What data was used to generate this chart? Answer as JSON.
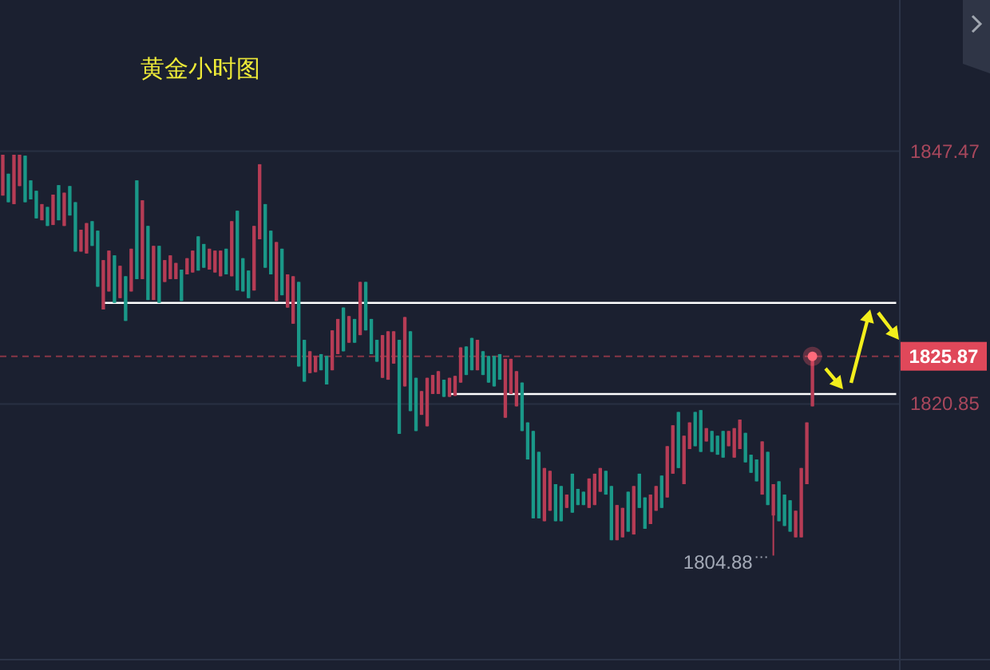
{
  "chart_data": {
    "type": "candlestick",
    "title": "黄金小时图",
    "categories": [
      null,
      null,
      null,
      null,
      null,
      null,
      null,
      null,
      null,
      null,
      null,
      null,
      null,
      null,
      null,
      null,
      null,
      null,
      null,
      null,
      null,
      null,
      null,
      null,
      null,
      null,
      null,
      null,
      null,
      null,
      null,
      null,
      null,
      null,
      null,
      null,
      null,
      null,
      null,
      null,
      null,
      null,
      null,
      null,
      null,
      null,
      null,
      null,
      null,
      null,
      null,
      null,
      null,
      null,
      null,
      null,
      null,
      null,
      null,
      null,
      null,
      null,
      null,
      null,
      null,
      null,
      null,
      null,
      null,
      null,
      null,
      null,
      null,
      null,
      null,
      null,
      null,
      null,
      null,
      null,
      null,
      null,
      null,
      null,
      null,
      null,
      null,
      null,
      null,
      null,
      null,
      null,
      null,
      null,
      null,
      null,
      null,
      null,
      null,
      null,
      null,
      null,
      null,
      null,
      null,
      null,
      null,
      null,
      null,
      null,
      null,
      null,
      null,
      null,
      null,
      null,
      null,
      null,
      null,
      null,
      null,
      null,
      null,
      null,
      null,
      null,
      null,
      null,
      null,
      null,
      null,
      null,
      null,
      null,
      null,
      null,
      null,
      null,
      null,
      null,
      null,
      null,
      null,
      null,
      null,
      null,
      null,
      null,
      null,
      null,
      null,
      null,
      null,
      null,
      null,
      null,
      null,
      null,
      null,
      null,
      null
    ],
    "ohlc": [
      [
        1842.8,
        1847.1,
        1842.8,
        1847.1
      ],
      [
        1845.1,
        1845.1,
        1842.1,
        1842.1
      ],
      [
        1841.9,
        1847.1,
        1841.9,
        1847.1
      ],
      [
        1843.8,
        1847.1,
        1843.8,
        1847.1
      ],
      [
        1847.0,
        1847.0,
        1842.1,
        1842.1
      ],
      [
        1844.4,
        1844.4,
        1842.4,
        1842.4
      ],
      [
        1843.3,
        1843.3,
        1840.4,
        1840.4
      ],
      [
        1840.2,
        1841.9,
        1840.2,
        1841.9
      ],
      [
        1841.6,
        1841.6,
        1839.6,
        1839.6
      ],
      [
        1839.7,
        1842.9,
        1839.7,
        1842.9
      ],
      [
        1843.9,
        1843.9,
        1840.2,
        1840.2
      ],
      [
        1839.6,
        1843.1,
        1839.6,
        1843.1
      ],
      [
        1843.8,
        1843.8,
        1840.7,
        1840.7
      ],
      [
        1842.1,
        1842.1,
        1836.9,
        1836.9
      ],
      [
        1836.9,
        1839.2,
        1836.9,
        1839.2
      ],
      [
        1836.7,
        1839.9,
        1836.7,
        1839.9
      ],
      [
        1840.1,
        1840.1,
        1837.5,
        1837.5
      ],
      [
        1839.1,
        1839.1,
        1833.2,
        1833.2
      ],
      [
        1830.8,
        1836.0,
        1830.8,
        1836.0
      ],
      [
        1832.7,
        1837.0,
        1832.7,
        1837.0
      ],
      [
        1836.5,
        1836.5,
        1831.5,
        1831.5
      ],
      [
        1832.0,
        1835.4,
        1832.0,
        1835.4
      ],
      [
        1834.3,
        1834.3,
        1829.6,
        1829.6
      ],
      [
        1832.7,
        1837.2,
        1832.7,
        1837.2
      ],
      [
        1844.4,
        1844.4,
        1834.0,
        1834.0
      ],
      [
        1834.0,
        1842.3,
        1834.0,
        1842.3
      ],
      [
        1839.6,
        1839.6,
        1831.8,
        1831.8
      ],
      [
        1831.8,
        1837.5,
        1831.8,
        1837.5
      ],
      [
        1837.5,
        1837.5,
        1831.5,
        1831.5
      ],
      [
        1833.7,
        1836.0,
        1833.7,
        1836.0
      ],
      [
        1834.0,
        1836.5,
        1834.0,
        1836.5
      ],
      [
        1834.0,
        1835.7,
        1834.0,
        1835.7
      ],
      [
        1835.0,
        1835.0,
        1831.7,
        1831.7
      ],
      [
        1834.5,
        1836.2,
        1834.5,
        1836.2
      ],
      [
        1834.7,
        1837.0,
        1834.7,
        1837.0
      ],
      [
        1838.5,
        1838.5,
        1834.9,
        1834.9
      ],
      [
        1837.7,
        1837.7,
        1835.2,
        1835.2
      ],
      [
        1835.0,
        1837.2,
        1835.0,
        1837.2
      ],
      [
        1834.7,
        1837.0,
        1834.7,
        1837.0
      ],
      [
        1834.3,
        1837.0,
        1834.3,
        1837.0
      ],
      [
        1837.2,
        1837.2,
        1834.5,
        1834.5
      ],
      [
        1834.3,
        1840.1,
        1834.3,
        1840.1
      ],
      [
        1841.2,
        1841.2,
        1832.8,
        1832.8
      ],
      [
        1836.2,
        1836.2,
        1832.7,
        1832.7
      ],
      [
        1834.9,
        1834.9,
        1832.0,
        1832.0
      ],
      [
        1832.8,
        1839.6,
        1832.8,
        1839.6
      ],
      [
        1838.2,
        1846.1,
        1838.2,
        1846.1
      ],
      [
        1841.9,
        1841.9,
        1835.2,
        1835.2
      ],
      [
        1839.1,
        1839.1,
        1834.5,
        1834.5
      ],
      [
        1831.7,
        1837.9,
        1831.7,
        1837.9
      ],
      [
        1837.2,
        1837.2,
        1832.3,
        1832.3
      ],
      [
        1831.0,
        1834.5,
        1831.0,
        1834.5
      ],
      [
        1829.3,
        1834.3,
        1829.3,
        1834.3
      ],
      [
        1833.7,
        1833.7,
        1824.8,
        1824.8
      ],
      [
        1827.6,
        1827.6,
        1823.2,
        1823.2
      ],
      [
        1824.1,
        1826.4,
        1824.1,
        1826.4
      ],
      [
        1824.2,
        1825.9,
        1824.2,
        1825.9
      ],
      [
        1826.1,
        1826.1,
        1824.4,
        1824.4
      ],
      [
        1825.9,
        1825.9,
        1822.9,
        1822.9
      ],
      [
        1824.4,
        1828.6,
        1824.4,
        1828.6
      ],
      [
        1826.1,
        1829.8,
        1826.1,
        1829.8
      ],
      [
        1831.0,
        1831.0,
        1826.4,
        1826.4
      ],
      [
        1827.3,
        1830.1,
        1827.3,
        1830.1
      ],
      [
        1829.8,
        1829.8,
        1827.3,
        1827.3
      ],
      [
        1828.1,
        1833.7,
        1828.1,
        1833.7
      ],
      [
        1833.7,
        1833.7,
        1828.6,
        1828.6
      ],
      [
        1829.8,
        1829.8,
        1826.1,
        1826.1
      ],
      [
        1827.6,
        1827.6,
        1825.3,
        1825.3
      ],
      [
        1823.6,
        1828.1,
        1823.6,
        1828.1
      ],
      [
        1823.4,
        1828.5,
        1823.4,
        1828.5
      ],
      [
        1825.1,
        1828.5,
        1825.1,
        1828.5
      ],
      [
        1827.6,
        1827.6,
        1817.7,
        1817.7
      ],
      [
        1822.7,
        1830.0,
        1822.7,
        1830.0
      ],
      [
        1828.5,
        1828.5,
        1820.1,
        1820.1
      ],
      [
        1823.6,
        1823.6,
        1818.0,
        1818.0
      ],
      [
        1819.7,
        1822.2,
        1819.7,
        1822.2
      ],
      [
        1818.5,
        1823.6,
        1818.5,
        1823.6
      ],
      [
        1821.9,
        1823.9,
        1821.9,
        1823.9
      ],
      [
        1821.9,
        1824.3,
        1821.9,
        1824.3
      ],
      [
        1823.4,
        1823.4,
        1821.6,
        1821.6
      ],
      [
        1821.6,
        1823.6,
        1821.6,
        1823.6
      ],
      [
        1821.7,
        1823.8,
        1821.7,
        1823.8
      ],
      [
        1823.1,
        1826.8,
        1823.1,
        1826.8
      ],
      [
        1826.9,
        1826.9,
        1823.9,
        1823.9
      ],
      [
        1827.8,
        1827.8,
        1824.4,
        1824.4
      ],
      [
        1824.4,
        1827.6,
        1824.4,
        1827.6
      ],
      [
        1826.4,
        1826.4,
        1823.9,
        1823.9
      ],
      [
        1825.9,
        1825.9,
        1823.1,
        1823.1
      ],
      [
        1825.9,
        1825.9,
        1822.7,
        1822.7
      ],
      [
        1826.1,
        1826.1,
        1823.4,
        1823.4
      ],
      [
        1819.4,
        1825.6,
        1819.4,
        1825.6
      ],
      [
        1821.9,
        1825.6,
        1821.9,
        1825.6
      ],
      [
        1820.6,
        1824.3,
        1820.6,
        1824.3
      ],
      [
        1823.1,
        1823.1,
        1818.0,
        1818.0
      ],
      [
        1818.9,
        1818.9,
        1815.0,
        1815.0
      ],
      [
        1818.0,
        1818.0,
        1808.8,
        1808.8
      ],
      [
        1815.8,
        1815.8,
        1808.8,
        1808.8
      ],
      [
        1808.5,
        1814.1,
        1808.5,
        1814.1
      ],
      [
        1809.6,
        1813.8,
        1809.6,
        1813.8
      ],
      [
        1812.4,
        1812.4,
        1808.5,
        1808.5
      ],
      [
        1812.2,
        1812.2,
        1808.5,
        1808.5
      ],
      [
        1809.9,
        1811.3,
        1809.9,
        1811.3
      ],
      [
        1813.5,
        1813.5,
        1809.4,
        1809.4
      ],
      [
        1811.9,
        1811.9,
        1810.2,
        1810.2
      ],
      [
        1811.6,
        1811.6,
        1810.2,
        1810.2
      ],
      [
        1809.9,
        1813.0,
        1809.9,
        1813.0
      ],
      [
        1810.2,
        1813.5,
        1810.2,
        1813.5
      ],
      [
        1811.6,
        1814.1,
        1811.6,
        1814.1
      ],
      [
        1813.8,
        1813.8,
        1811.3,
        1811.3
      ],
      [
        1812.2,
        1812.2,
        1806.5,
        1806.5
      ],
      [
        1806.5,
        1810.2,
        1806.5,
        1810.2
      ],
      [
        1806.8,
        1809.9,
        1806.8,
        1809.9
      ],
      [
        1811.6,
        1811.6,
        1807.4,
        1807.4
      ],
      [
        1807.1,
        1812.2,
        1807.1,
        1812.2
      ],
      [
        1813.5,
        1813.5,
        1809.9,
        1809.9
      ],
      [
        1811.0,
        1811.0,
        1807.7,
        1807.7
      ],
      [
        1808.2,
        1811.3,
        1808.2,
        1811.3
      ],
      [
        1809.6,
        1812.2,
        1809.6,
        1812.2
      ],
      [
        1813.3,
        1813.3,
        1809.9,
        1809.9
      ],
      [
        1811.0,
        1816.4,
        1811.0,
        1816.4
      ],
      [
        1813.5,
        1818.6,
        1813.5,
        1818.6
      ],
      [
        1820.0,
        1820.0,
        1814.1,
        1814.1
      ],
      [
        1812.4,
        1817.5,
        1812.4,
        1817.5
      ],
      [
        1816.1,
        1818.9,
        1816.1,
        1818.9
      ],
      [
        1820.0,
        1820.0,
        1816.4,
        1816.4
      ],
      [
        1820.2,
        1820.2,
        1815.8,
        1815.8
      ],
      [
        1816.9,
        1818.3,
        1816.9,
        1818.3
      ],
      [
        1818.0,
        1818.0,
        1815.8,
        1815.8
      ],
      [
        1817.5,
        1817.5,
        1815.5,
        1815.5
      ],
      [
        1818.0,
        1818.0,
        1815.2,
        1815.2
      ],
      [
        1816.4,
        1818.0,
        1816.4,
        1818.0
      ],
      [
        1815.2,
        1818.3,
        1815.2,
        1818.3
      ],
      [
        1816.1,
        1819.2,
        1816.1,
        1819.2
      ],
      [
        1817.8,
        1817.8,
        1814.7,
        1814.7
      ],
      [
        1815.5,
        1815.5,
        1813.6,
        1813.6
      ],
      [
        1815.0,
        1815.0,
        1812.7,
        1812.7
      ],
      [
        1811.3,
        1816.9,
        1811.3,
        1816.9
      ],
      [
        1815.8,
        1815.8,
        1810.2,
        1810.2
      ],
      [
        1809.1,
        1812.4,
        1804.88,
        1812.4
      ],
      [
        1812.7,
        1812.7,
        1808.5,
        1808.5
      ],
      [
        1811.3,
        1811.3,
        1808.0,
        1808.0
      ],
      [
        1810.7,
        1810.7,
        1807.4,
        1807.4
      ],
      [
        1806.8,
        1809.6,
        1806.8,
        1809.6
      ],
      [
        1806.8,
        1814.1,
        1806.8,
        1814.1
      ],
      [
        1812.4,
        1818.9,
        1812.4,
        1818.9
      ],
      [
        1820.6,
        1825.87,
        1820.6,
        1825.87
      ],
      null,
      null,
      null,
      null,
      null,
      null,
      null,
      null,
      null,
      null,
      null,
      null,
      null,
      null,
      null
    ],
    "colors": [
      "#b63c55",
      "#1a9888",
      "#b63c55",
      "#b63c55",
      "#1a9888",
      "#1a9888",
      "#1a9888",
      "#b63c55",
      "#1a9888",
      "#b63c55",
      "#1a9888",
      "#b63c55",
      "#1a9888",
      "#1a9888",
      "#b63c55",
      "#b63c55",
      "#1a9888",
      "#1a9888",
      "#b63c55",
      "#b63c55",
      "#1a9888",
      "#b63c55",
      "#1a9888",
      "#b63c55",
      "#1a9888",
      "#b63c55",
      "#1a9888",
      "#b63c55",
      "#1a9888",
      "#b63c55",
      "#b63c55",
      "#b63c55",
      "#1a9888",
      "#b63c55",
      "#b63c55",
      "#1a9888",
      "#1a9888",
      "#b63c55",
      "#b63c55",
      "#b63c55",
      "#1a9888",
      "#b63c55",
      "#1a9888",
      "#1a9888",
      "#1a9888",
      "#b63c55",
      "#b63c55",
      "#1a9888",
      "#1a9888",
      "#b63c55",
      "#1a9888",
      "#b63c55",
      "#b63c55",
      "#1a9888",
      "#1a9888",
      "#b63c55",
      "#b63c55",
      "#1a9888",
      "#1a9888",
      "#b63c55",
      "#b63c55",
      "#1a9888",
      "#b63c55",
      "#1a9888",
      "#b63c55",
      "#1a9888",
      "#1a9888",
      "#1a9888",
      "#b63c55",
      "#b63c55",
      "#b63c55",
      "#1a9888",
      "#b63c55",
      "#1a9888",
      "#1a9888",
      "#b63c55",
      "#b63c55",
      "#b63c55",
      "#b63c55",
      "#1a9888",
      "#b63c55",
      "#b63c55",
      "#b63c55",
      "#1a9888",
      "#1a9888",
      "#b63c55",
      "#1a9888",
      "#1a9888",
      "#1a9888",
      "#1a9888",
      "#b63c55",
      "#b63c55",
      "#b63c55",
      "#1a9888",
      "#1a9888",
      "#1a9888",
      "#1a9888",
      "#b63c55",
      "#b63c55",
      "#1a9888",
      "#1a9888",
      "#b63c55",
      "#1a9888",
      "#1a9888",
      "#1a9888",
      "#b63c55",
      "#b63c55",
      "#b63c55",
      "#1a9888",
      "#1a9888",
      "#b63c55",
      "#b63c55",
      "#1a9888",
      "#b63c55",
      "#1a9888",
      "#1a9888",
      "#b63c55",
      "#b63c55",
      "#1a9888",
      "#b63c55",
      "#b63c55",
      "#1a9888",
      "#b63c55",
      "#b63c55",
      "#1a9888",
      "#1a9888",
      "#b63c55",
      "#1a9888",
      "#1a9888",
      "#1a9888",
      "#b63c55",
      "#b63c55",
      "#b63c55",
      "#1a9888",
      "#1a9888",
      "#1a9888",
      "#b63c55",
      "#1a9888",
      "#b63c55",
      "#1a9888",
      "#1a9888",
      "#1a9888",
      "#b63c55",
      "#b63c55",
      "#b63c55",
      "#b63c55",
      null,
      null,
      null,
      null,
      null,
      null,
      null,
      null,
      null,
      null,
      null,
      null,
      null,
      null,
      null
    ],
    "series": [
      {
        "type": "line",
        "color": "#ffffff",
        "values": [
          null,
          null,
          null,
          null,
          null,
          null,
          null,
          null,
          null,
          null,
          null,
          null,
          null,
          null,
          null,
          null,
          null,
          null,
          1831.5,
          1831.5,
          1831.5,
          1831.5,
          1831.5,
          1831.5,
          1831.5,
          1831.5,
          1831.5,
          1831.5,
          1831.5,
          1831.5,
          1831.5,
          1831.5,
          1831.5,
          1831.5,
          1831.5,
          1831.5,
          1831.5,
          1831.5,
          1831.5,
          1831.5,
          1831.5,
          1831.5,
          1831.5,
          1831.5,
          1831.5,
          1831.5,
          1831.5,
          1831.5,
          1831.5,
          1831.5,
          1831.5,
          1831.5,
          1831.5,
          1831.5,
          1831.5,
          1831.5,
          1831.5,
          1831.5,
          1831.5,
          1831.5,
          1831.5,
          1831.5,
          1831.5,
          1831.5,
          1831.5,
          1831.5,
          1831.5,
          1831.5,
          1831.5,
          1831.5,
          1831.5,
          1831.5,
          1831.5,
          1831.5,
          1831.5,
          1831.5,
          1831.5,
          1831.5,
          1831.5,
          1831.5,
          1831.5,
          1831.5,
          1831.5,
          1831.5,
          1831.5,
          1831.5,
          1831.5,
          1831.5,
          1831.5,
          1831.5,
          1831.5,
          1831.5,
          1831.5,
          1831.5,
          1831.5,
          1831.5,
          1831.5,
          1831.5,
          1831.5,
          1831.5,
          1831.5,
          1831.5,
          1831.5,
          1831.5,
          1831.5,
          1831.5,
          1831.5,
          1831.5,
          1831.5,
          1831.5,
          1831.5,
          1831.5,
          1831.5,
          1831.5,
          1831.5,
          1831.5,
          1831.5,
          1831.5,
          1831.5,
          1831.5,
          1831.5,
          1831.5,
          1831.5,
          1831.5,
          1831.5,
          1831.5,
          1831.5,
          1831.5,
          1831.5,
          1831.5,
          1831.5,
          1831.5,
          1831.5,
          1831.5,
          1831.5,
          1831.5,
          1831.5,
          1831.5,
          1831.5,
          1831.5,
          1831.5,
          1831.5,
          1831.5,
          1831.5,
          1831.5,
          1831.5,
          1831.5,
          1831.5,
          1831.5,
          1831.5,
          1831.5,
          1831.5,
          1831.5,
          1831.5,
          1831.5,
          1831.5,
          1831.5,
          1831.5,
          1831.5,
          1831.5,
          1831.5
        ]
      },
      {
        "type": "line",
        "color": "#ffffff",
        "values": [
          null,
          null,
          null,
          null,
          null,
          null,
          null,
          null,
          null,
          null,
          null,
          null,
          null,
          null,
          null,
          null,
          null,
          null,
          null,
          null,
          null,
          null,
          null,
          null,
          null,
          null,
          null,
          null,
          null,
          null,
          null,
          null,
          null,
          null,
          null,
          null,
          null,
          null,
          null,
          null,
          null,
          null,
          null,
          null,
          null,
          null,
          null,
          null,
          null,
          null,
          null,
          null,
          null,
          null,
          null,
          null,
          null,
          null,
          null,
          null,
          null,
          null,
          null,
          null,
          null,
          null,
          null,
          null,
          null,
          null,
          null,
          null,
          null,
          null,
          null,
          null,
          null,
          null,
          null,
          null,
          1821.9,
          1821.9,
          1821.9,
          1821.9,
          1821.9,
          1821.9,
          1821.9,
          1821.9,
          1821.9,
          1821.9,
          1821.9,
          1821.9,
          1821.9,
          1821.9,
          1821.9,
          1821.9,
          1821.9,
          1821.9,
          1821.9,
          1821.9,
          1821.9,
          1821.9,
          1821.9,
          1821.9,
          1821.9,
          1821.9,
          1821.9,
          1821.9,
          1821.9,
          1821.9,
          1821.9,
          1821.9,
          1821.9,
          1821.9,
          1821.9,
          1821.9,
          1821.9,
          1821.9,
          1821.9,
          1821.9,
          1821.9,
          1821.9,
          1821.9,
          1821.9,
          1821.9,
          1821.9,
          1821.9,
          1821.9,
          1821.9,
          1821.9,
          1821.9,
          1821.9,
          1821.9,
          1821.9,
          1821.9,
          1821.9,
          1821.9,
          1821.9,
          1821.9,
          1821.9,
          1821.9,
          1821.9,
          1821.9,
          1821.9,
          1821.9,
          1821.9,
          1821.9,
          1821.9,
          1821.9,
          1821.9,
          1821.9,
          1821.9,
          1821.9,
          1821.9,
          1821.9,
          1821.9,
          1821.9,
          1821.9,
          1821.9,
          1821.9,
          1821.9
        ]
      }
    ],
    "ylim": [
      1794.0,
      1863.4
    ],
    "yticks": [
      1847.47,
      1820.85
    ],
    "grid": "y",
    "tick_labels": "y",
    "ref_lines": [
      {
        "axis": "y",
        "value": 1825.87,
        "label": "1825.87",
        "color": "#e0485a",
        "line_style": "dashed"
      }
    ],
    "annotations": [
      "1804.88"
    ]
  }
}
